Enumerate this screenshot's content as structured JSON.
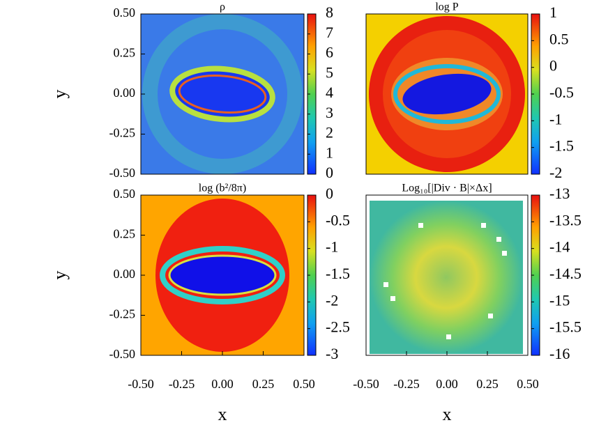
{
  "chart_data": [
    {
      "type": "heatmap",
      "title": "ρ",
      "ylabel": "y",
      "ylim": [
        -0.5,
        0.5
      ],
      "yticks": [
        {
          "value": -0.5,
          "label": "-0.50"
        },
        {
          "value": -0.25,
          "label": "-0.25"
        },
        {
          "value": 0,
          "label": "0.00"
        },
        {
          "value": 0.25,
          "label": "0.25"
        },
        {
          "value": 0.5,
          "label": "0.50"
        }
      ],
      "clim": [
        0,
        8
      ],
      "cticks": [
        0,
        1,
        2,
        3,
        4,
        5,
        6,
        7,
        8
      ]
    },
    {
      "type": "heatmap",
      "title": "log P",
      "clim": [
        -2,
        1
      ],
      "cticks": [
        -2,
        -1.5,
        -1,
        -0.5,
        0,
        0.5,
        1
      ]
    },
    {
      "type": "heatmap",
      "title": "log (b²/8π)",
      "xlabel": "x",
      "xlim": [
        -0.5,
        0.5
      ],
      "xticks": [
        {
          "value": -0.5,
          "label": "-0.50"
        },
        {
          "value": -0.25,
          "label": "-0.25"
        },
        {
          "value": 0,
          "label": "0.00"
        },
        {
          "value": 0.25,
          "label": "0.25"
        },
        {
          "value": 0.5,
          "label": "0.50"
        }
      ],
      "ylabel": "y",
      "ylim": [
        -0.5,
        0.5
      ],
      "yticks": [
        {
          "value": -0.5,
          "label": "-0.50"
        },
        {
          "value": -0.25,
          "label": "-0.25"
        },
        {
          "value": 0,
          "label": "0.00"
        },
        {
          "value": 0.25,
          "label": "0.25"
        },
        {
          "value": 0.5,
          "label": "0.50"
        }
      ],
      "clim": [
        -3,
        0
      ],
      "cticks": [
        -3,
        -2.5,
        -2,
        -1.5,
        -1,
        -0.5,
        0
      ]
    },
    {
      "type": "heatmap",
      "title": "Log₁₀[|Div · B|×Δx]",
      "xlabel": "x",
      "xlim": [
        -0.5,
        0.5
      ],
      "xticks": [
        {
          "value": -0.5,
          "label": "-0.50"
        },
        {
          "value": -0.25,
          "label": "-0.25"
        },
        {
          "value": 0,
          "label": "0.00"
        },
        {
          "value": 0.25,
          "label": "0.25"
        },
        {
          "value": 0.5,
          "label": "0.50"
        }
      ],
      "clim": [
        -16,
        -13
      ],
      "cticks": [
        -16,
        -15.5,
        -15,
        -14.5,
        -14,
        -13.5,
        -13
      ]
    }
  ]
}
